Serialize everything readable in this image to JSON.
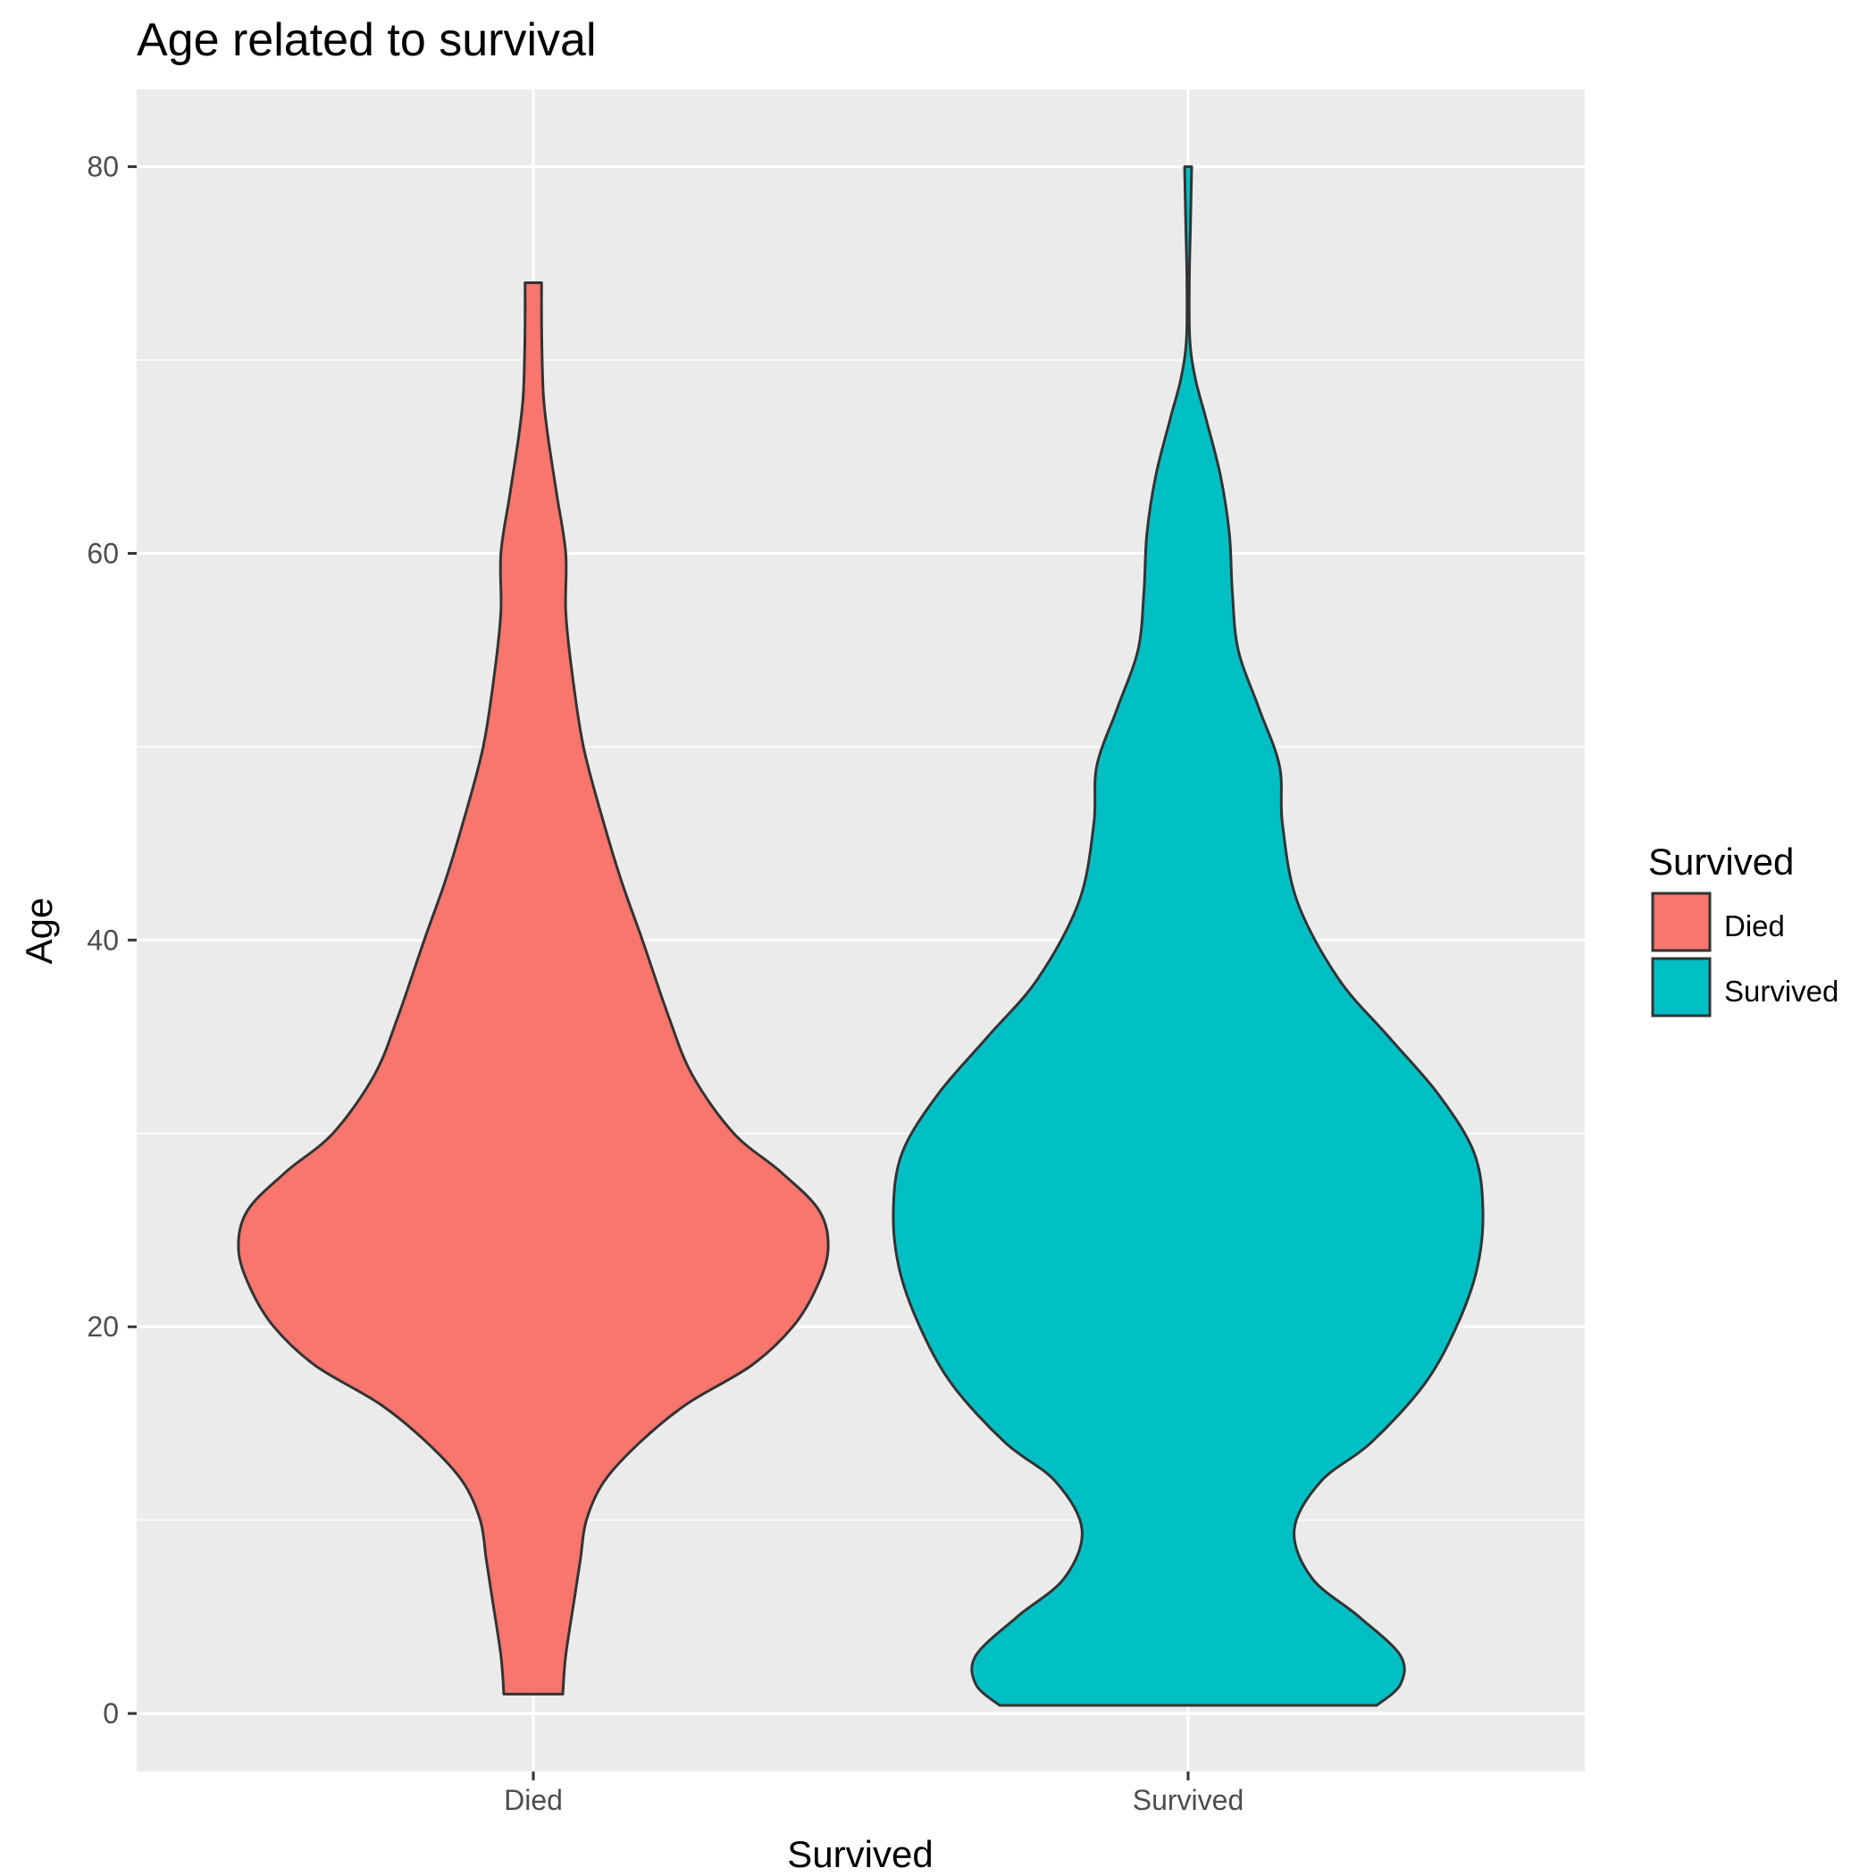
{
  "chart_data": {
    "type": "violin",
    "title": "Age related to survival",
    "xlabel": "Survived",
    "ylabel": "Age",
    "categories": [
      "Died",
      "Survived"
    ],
    "ylim": [
      -3,
      84
    ],
    "yticks": [
      0,
      20,
      40,
      60,
      80
    ],
    "y_minor_gridlines": [
      10,
      30,
      50,
      70
    ],
    "grid": true,
    "legend": {
      "title": "Survived",
      "position": "right",
      "entries": [
        {
          "label": "Died",
          "color": "#F8766D"
        },
        {
          "label": "Survived",
          "color": "#00BFC4"
        }
      ]
    },
    "colors": {
      "panel_background": "#EBEBEB",
      "grid": "#FFFFFF",
      "outline": "#333333"
    },
    "series": [
      {
        "name": "Died",
        "color": "#F8766D",
        "min": 1,
        "max": 74,
        "density_profile": [
          {
            "y": 1,
            "w": 0.1
          },
          {
            "y": 3,
            "w": 0.11
          },
          {
            "y": 6,
            "w": 0.14
          },
          {
            "y": 8,
            "w": 0.16
          },
          {
            "y": 10,
            "w": 0.18
          },
          {
            "y": 12,
            "w": 0.24
          },
          {
            "y": 14,
            "w": 0.36
          },
          {
            "y": 16,
            "w": 0.52
          },
          {
            "y": 18,
            "w": 0.74
          },
          {
            "y": 20,
            "w": 0.88
          },
          {
            "y": 22,
            "w": 0.96
          },
          {
            "y": 24,
            "w": 1.0
          },
          {
            "y": 26,
            "w": 0.97
          },
          {
            "y": 28,
            "w": 0.84
          },
          {
            "y": 30,
            "w": 0.68
          },
          {
            "y": 33,
            "w": 0.54
          },
          {
            "y": 36,
            "w": 0.46
          },
          {
            "y": 40,
            "w": 0.37
          },
          {
            "y": 43,
            "w": 0.3
          },
          {
            "y": 46,
            "w": 0.24
          },
          {
            "y": 50,
            "w": 0.17
          },
          {
            "y": 54,
            "w": 0.13
          },
          {
            "y": 57,
            "w": 0.11
          },
          {
            "y": 60,
            "w": 0.11
          },
          {
            "y": 63,
            "w": 0.08
          },
          {
            "y": 66,
            "w": 0.05
          },
          {
            "y": 68,
            "w": 0.035
          },
          {
            "y": 70,
            "w": 0.03
          },
          {
            "y": 72,
            "w": 0.028
          },
          {
            "y": 74,
            "w": 0.028
          }
        ]
      },
      {
        "name": "Survived",
        "color": "#00BFC4",
        "min": 0.42,
        "max": 80,
        "density_profile": [
          {
            "y": 0.42,
            "w": 0.64
          },
          {
            "y": 1.5,
            "w": 0.72
          },
          {
            "y": 3,
            "w": 0.72
          },
          {
            "y": 5,
            "w": 0.58
          },
          {
            "y": 7,
            "w": 0.42
          },
          {
            "y": 9.5,
            "w": 0.36
          },
          {
            "y": 12,
            "w": 0.45
          },
          {
            "y": 14,
            "w": 0.62
          },
          {
            "y": 17,
            "w": 0.8
          },
          {
            "y": 20,
            "w": 0.91
          },
          {
            "y": 23,
            "w": 0.98
          },
          {
            "y": 26,
            "w": 1.0
          },
          {
            "y": 29,
            "w": 0.97
          },
          {
            "y": 32,
            "w": 0.85
          },
          {
            "y": 35,
            "w": 0.68
          },
          {
            "y": 38,
            "w": 0.51
          },
          {
            "y": 42,
            "w": 0.37
          },
          {
            "y": 46,
            "w": 0.32
          },
          {
            "y": 49,
            "w": 0.31
          },
          {
            "y": 52,
            "w": 0.24
          },
          {
            "y": 55,
            "w": 0.17
          },
          {
            "y": 58,
            "w": 0.15
          },
          {
            "y": 61,
            "w": 0.14
          },
          {
            "y": 64,
            "w": 0.11
          },
          {
            "y": 67,
            "w": 0.06
          },
          {
            "y": 69,
            "w": 0.025
          },
          {
            "y": 71,
            "w": 0.006
          },
          {
            "y": 74,
            "w": 0.004
          },
          {
            "y": 77,
            "w": 0.008
          },
          {
            "y": 80,
            "w": 0.012
          }
        ]
      }
    ]
  }
}
